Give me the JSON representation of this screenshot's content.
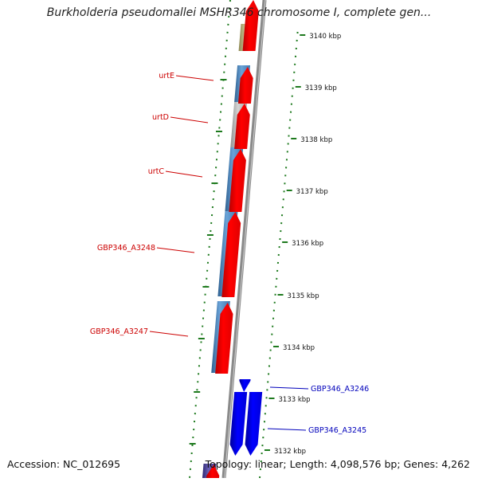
{
  "title": "Burkholderia pseudomallei MSHR346 chromosome I, complete gen...",
  "footer": {
    "accession": "Accession: NC_012695",
    "topology": "Topology: linear; Length: 4,098,576 bp; Genes: 4,262"
  },
  "colors": {
    "forward_gene": "#ff0000",
    "reverse_gene": "#0000ff",
    "cds_blue": "#4a86c0",
    "cds_gray": "#bdbdbd",
    "cds_khaki": "#b7b077",
    "cds_purple": "#4a3f9a",
    "left_label": "#cc0000",
    "right_label": "#0000bb",
    "tick": "#1e7a1e"
  },
  "ruler": {
    "ticks": [
      {
        "kbp": 3140,
        "label": "3140 kbp"
      },
      {
        "kbp": 3139,
        "label": "3139 kbp"
      },
      {
        "kbp": 3138,
        "label": "3138 kbp"
      },
      {
        "kbp": 3137,
        "label": "3137 kbp"
      },
      {
        "kbp": 3136,
        "label": "3136 kbp"
      },
      {
        "kbp": 3135,
        "label": "3135 kbp"
      },
      {
        "kbp": 3134,
        "label": "3134 kbp"
      },
      {
        "kbp": 3133,
        "label": "3133 kbp"
      },
      {
        "kbp": 3132,
        "label": "3132 kbp"
      }
    ]
  },
  "genes_left": [
    {
      "label": "urtE"
    },
    {
      "label": "urtD"
    },
    {
      "label": "urtC"
    },
    {
      "label": "GBP346_A3248"
    },
    {
      "label": "GBP346_A3247"
    }
  ],
  "genes_right": [
    {
      "label": "GBP346_A3246"
    },
    {
      "label": "GBP346_A3245"
    }
  ]
}
